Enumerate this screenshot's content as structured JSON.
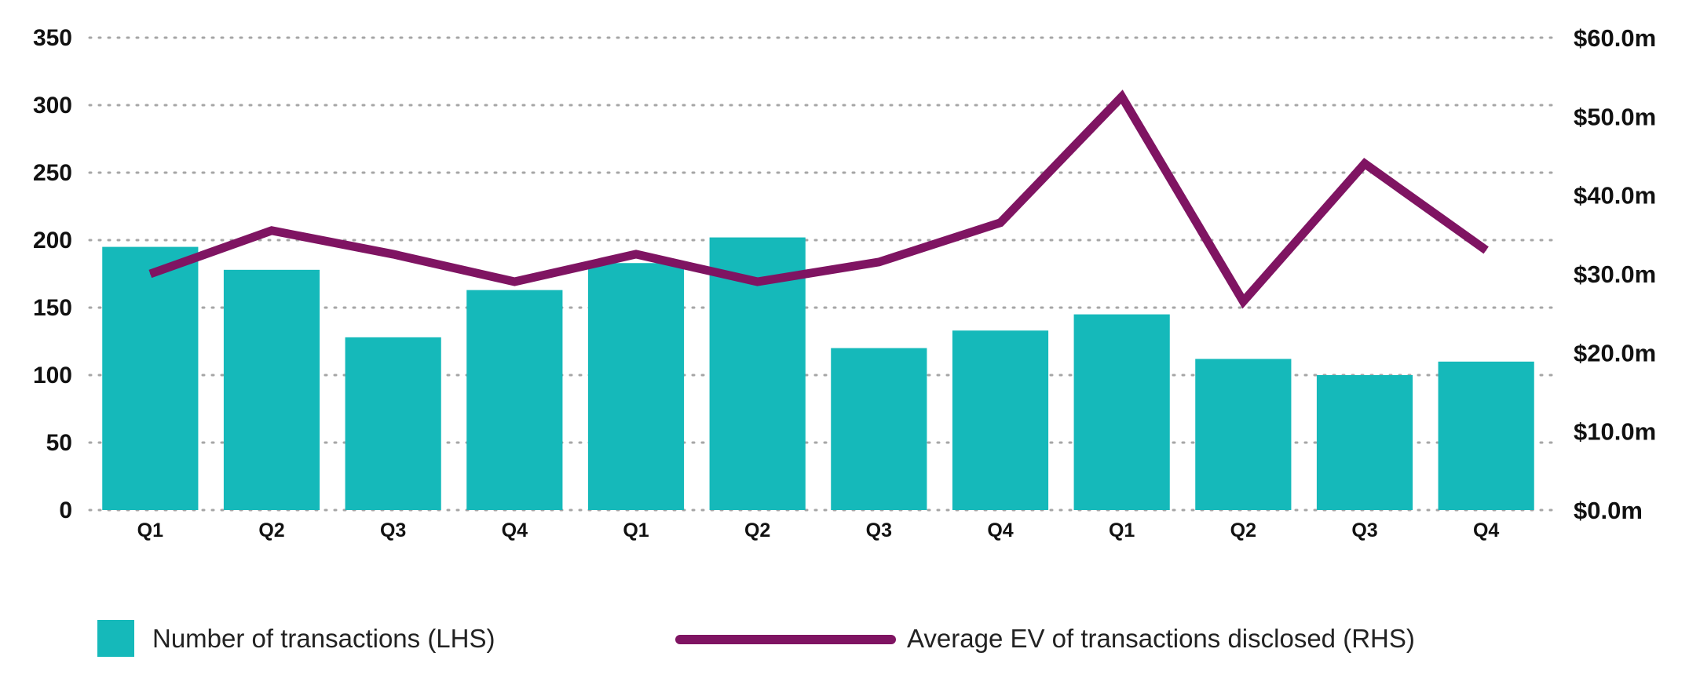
{
  "chart_data": {
    "type": "bar",
    "categories": [
      "Q1",
      "Q2",
      "Q3",
      "Q4",
      "Q1",
      "Q2",
      "Q3",
      "Q4",
      "Q1",
      "Q2",
      "Q3",
      "Q4"
    ],
    "series": [
      {
        "name": "Number of transactions (LHS)",
        "type": "bar",
        "axis": "left",
        "color": "#15b9ba",
        "values": [
          195,
          178,
          128,
          163,
          183,
          202,
          120,
          133,
          145,
          112,
          100,
          110
        ]
      },
      {
        "name": "Average EV of transactions disclosed (RHS)",
        "type": "line",
        "axis": "right",
        "color": "#7f1462",
        "values": [
          30.0,
          35.5,
          32.5,
          29.0,
          32.5,
          29.0,
          31.5,
          36.5,
          52.5,
          26.5,
          44.0,
          33.0
        ]
      }
    ],
    "left_axis": {
      "ylim": [
        0,
        350
      ],
      "ticks": [
        "0",
        "50",
        "100",
        "150",
        "200",
        "250",
        "300",
        "350"
      ]
    },
    "right_axis": {
      "ylim": [
        0,
        60
      ],
      "ticks": [
        "$0.0m",
        "$10.0m",
        "$20.0m",
        "$30.0m",
        "$40.0m",
        "$50.0m",
        "$60.0m"
      ]
    },
    "grid": "dotted horizontal",
    "legend_position": "bottom",
    "title": "",
    "xlabel": "",
    "ylabel": ""
  }
}
